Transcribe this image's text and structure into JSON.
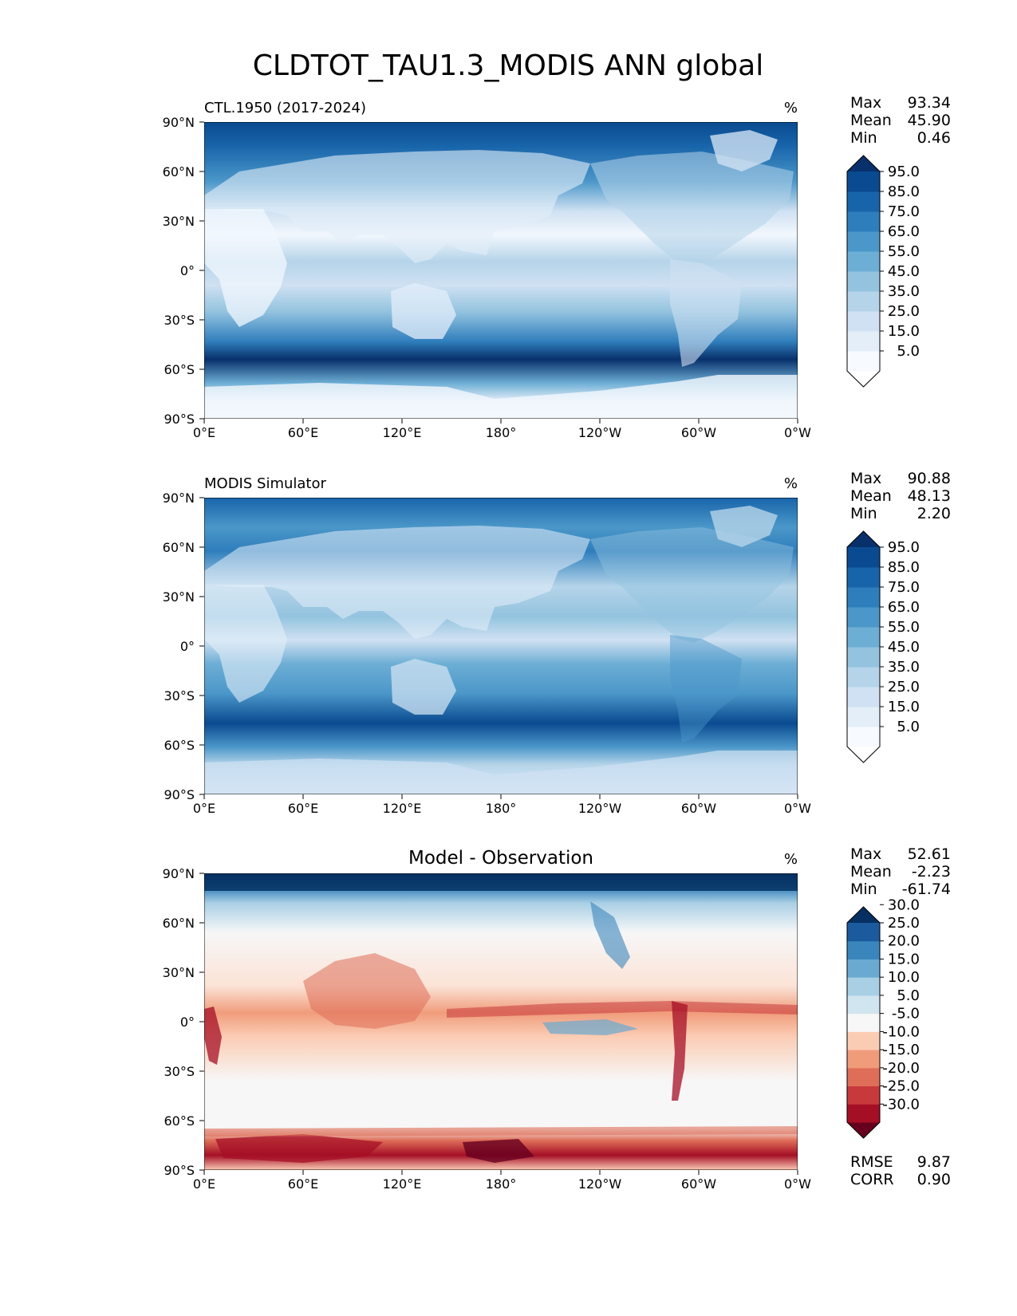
{
  "figure": {
    "title": "CLDTOT_TAU1.3_MODIS ANN global"
  },
  "chart_data": [
    {
      "type": "heatmap",
      "panel_key": "ctl",
      "title": "CTL.1950 (2017-2024)",
      "units": "%",
      "stats": [
        {
          "label": "Max",
          "value": "93.34"
        },
        {
          "label": "Mean",
          "value": "45.90"
        },
        {
          "label": "Min",
          "value": "0.46"
        }
      ],
      "colorbar_ticks": [
        "5.0",
        "15.0",
        "25.0",
        "35.0",
        "45.0",
        "55.0",
        "65.0",
        "75.0",
        "85.0",
        "95.0"
      ],
      "colorbar_colors": [
        "#ffffff",
        "#f7fbff",
        "#e3eef9",
        "#cfe1f2",
        "#b5d4e9",
        "#93c3df",
        "#6daed5",
        "#4b97c9",
        "#2f7ebc",
        "#1864aa",
        "#0a4a90",
        "#08306b"
      ],
      "xticks": [
        "0°E",
        "60°E",
        "120°E",
        "180°",
        "120°W",
        "60°W",
        "0°W"
      ],
      "yticks": [
        "90°N",
        "60°N",
        "30°N",
        "0°",
        "30°S",
        "60°S",
        "90°S"
      ],
      "xlim": [
        0,
        360
      ],
      "ylim": [
        -90,
        90
      ]
    },
    {
      "type": "heatmap",
      "panel_key": "obs",
      "title": "MODIS Simulator",
      "units": "%",
      "stats": [
        {
          "label": "Max",
          "value": "90.88"
        },
        {
          "label": "Mean",
          "value": "48.13"
        },
        {
          "label": "Min",
          "value": "2.20"
        }
      ],
      "colorbar_ticks": [
        "5.0",
        "15.0",
        "25.0",
        "35.0",
        "45.0",
        "55.0",
        "65.0",
        "75.0",
        "85.0",
        "95.0"
      ],
      "colorbar_colors": [
        "#ffffff",
        "#f7fbff",
        "#e3eef9",
        "#cfe1f2",
        "#b5d4e9",
        "#93c3df",
        "#6daed5",
        "#4b97c9",
        "#2f7ebc",
        "#1864aa",
        "#0a4a90",
        "#08306b"
      ],
      "xticks": [
        "0°E",
        "60°E",
        "120°E",
        "180°",
        "120°W",
        "60°W",
        "0°W"
      ],
      "yticks": [
        "90°N",
        "60°N",
        "30°N",
        "0°",
        "30°S",
        "60°S",
        "90°S"
      ],
      "xlim": [
        0,
        360
      ],
      "ylim": [
        -90,
        90
      ]
    },
    {
      "type": "heatmap",
      "panel_key": "diff",
      "title": "Model - Observation",
      "units": "%",
      "stats": [
        {
          "label": "Max",
          "value": "52.61"
        },
        {
          "label": "Mean",
          "value": "-2.23"
        },
        {
          "label": "Min",
          "value": "-61.74"
        }
      ],
      "bottom_stats": [
        {
          "label": "RMSE",
          "value": "9.87"
        },
        {
          "label": "CORR",
          "value": "0.90"
        }
      ],
      "colorbar_ticks": [
        "-30.0",
        "-25.0",
        "-20.0",
        "-15.0",
        "-10.0",
        "-5.0",
        "5.0",
        "10.0",
        "15.0",
        "20.0",
        "25.0",
        "30.0"
      ],
      "colorbar_colors": [
        "#67001f",
        "#a50f26",
        "#c7393b",
        "#de6e58",
        "#f09c7b",
        "#fbccb4",
        "#f7f7f7",
        "#d1e5f0",
        "#a9cfe5",
        "#6aaad0",
        "#3a86bc",
        "#1b5a9d",
        "#053061"
      ],
      "xticks": [
        "0°E",
        "60°E",
        "120°E",
        "180°",
        "120°W",
        "60°W",
        "0°W"
      ],
      "yticks": [
        "90°N",
        "60°N",
        "30°N",
        "0°",
        "30°S",
        "60°S",
        "90°S"
      ],
      "xlim": [
        0,
        360
      ],
      "ylim": [
        -90,
        90
      ]
    }
  ]
}
